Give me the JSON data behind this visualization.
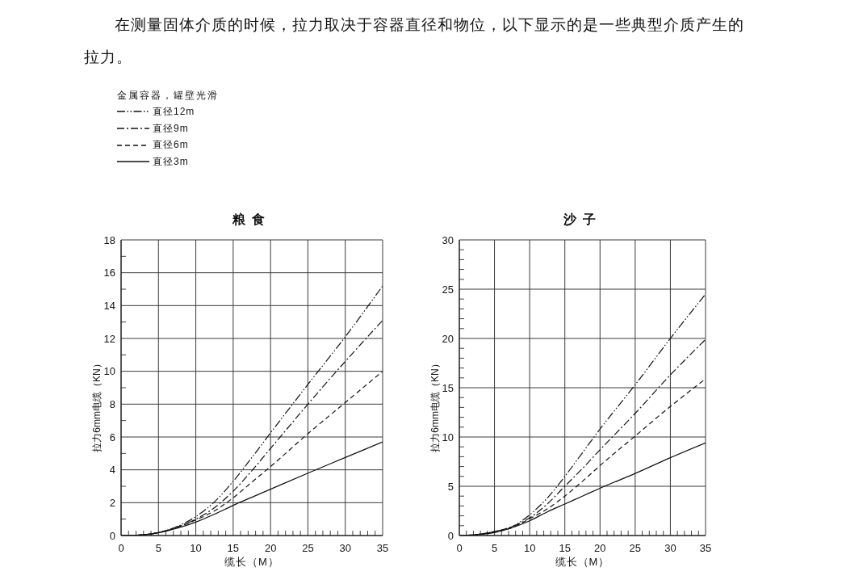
{
  "chart_data": [
    {
      "type": "line",
      "title": "粮食",
      "annotations": [
        "在测量固体介质的时候，拉力取决于容器直径和物位，以下显示的是一些典型介质产生的拉力。"
      ],
      "xlabel": "缆长（M）",
      "ylabel": "拉力6mm电缆（KN）",
      "legend_title": "金属容器，罐壁光滑",
      "legend": "top left",
      "grid": true,
      "xlim": [
        0,
        35
      ],
      "ylim": [
        0,
        18
      ],
      "xticks": [
        0,
        {
          "value": 1,
          "label": null
        },
        {
          "value": 2,
          "label": null
        },
        {
          "value": 3,
          "label": null
        },
        {
          "value": 4,
          "label": null
        },
        5,
        {
          "value": 6,
          "label": null
        },
        {
          "value": 7,
          "label": null
        },
        {
          "value": 8,
          "label": null
        },
        {
          "value": 9,
          "label": null
        },
        10,
        {
          "value": 11,
          "label": null
        },
        {
          "value": 12,
          "label": null
        },
        {
          "value": 13,
          "label": null
        },
        {
          "value": 14,
          "label": null
        },
        15,
        {
          "value": 16,
          "label": null
        },
        {
          "value": 17,
          "label": null
        },
        {
          "value": 18,
          "label": null
        },
        {
          "value": 19,
          "label": null
        },
        20,
        {
          "value": 21,
          "label": null
        },
        {
          "value": 22,
          "label": null
        },
        {
          "value": 23,
          "label": null
        },
        {
          "value": 24,
          "label": null
        },
        25,
        {
          "value": 26,
          "label": null
        },
        {
          "value": 27,
          "label": null
        },
        {
          "value": 28,
          "label": null
        },
        {
          "value": 29,
          "label": null
        },
        30,
        {
          "value": 31,
          "label": null
        },
        {
          "value": 32,
          "label": null
        },
        {
          "value": 33,
          "label": null
        },
        {
          "value": 34,
          "label": null
        },
        35
      ],
      "yticks": [
        0,
        {
          "value": 1,
          "label": null
        },
        2,
        {
          "value": 3,
          "label": null
        },
        4,
        {
          "value": 5,
          "label": null
        },
        6,
        {
          "value": 7,
          "label": null
        },
        8,
        {
          "value": 9,
          "label": null
        },
        10,
        {
          "value": 11,
          "label": null
        },
        12,
        {
          "value": 13,
          "label": null
        },
        14,
        {
          "value": 15,
          "label": null
        },
        16,
        {
          "value": 17,
          "label": null
        },
        18
      ],
      "x": [
        0,
        2.5,
        5,
        7.5,
        10,
        12.5,
        15,
        17.5,
        20,
        25,
        30,
        35
      ],
      "series": [
        {
          "name": "直径12m",
          "color": "#111111",
          "line_style": "dashdotdot",
          "values": [
            0,
            0.03,
            0.18,
            0.55,
            1.15,
            2.05,
            3.3,
            4.75,
            6.25,
            9.2,
            12.1,
            15.2
          ]
        },
        {
          "name": "直径9m",
          "color": "#111111",
          "line_style": "dashdot",
          "values": [
            0,
            0.03,
            0.18,
            0.52,
            1.0,
            1.7,
            2.7,
            3.95,
            5.3,
            8.0,
            10.6,
            13.1
          ]
        },
        {
          "name": "直径6m",
          "color": "#111111",
          "line_style": "dashed",
          "values": [
            0,
            0.03,
            0.18,
            0.5,
            0.95,
            1.5,
            2.3,
            3.25,
            4.2,
            6.2,
            8.1,
            10.0
          ]
        },
        {
          "name": "直径3m",
          "color": "#111111",
          "line_style": "solid",
          "values": [
            0,
            0.03,
            0.17,
            0.45,
            0.82,
            1.3,
            1.84,
            2.33,
            2.82,
            3.8,
            4.75,
            5.7
          ]
        }
      ]
    },
    {
      "type": "line",
      "title": "沙子",
      "xlabel": "缆长（M）",
      "ylabel": "拉力6mm电缆（KN）",
      "grid": true,
      "xlim": [
        0,
        35
      ],
      "ylim": [
        0,
        30
      ],
      "xticks": [
        0,
        {
          "value": 1,
          "label": null
        },
        {
          "value": 2,
          "label": null
        },
        {
          "value": 3,
          "label": null
        },
        {
          "value": 4,
          "label": null
        },
        5,
        {
          "value": 6,
          "label": null
        },
        {
          "value": 7,
          "label": null
        },
        {
          "value": 8,
          "label": null
        },
        {
          "value": 9,
          "label": null
        },
        10,
        {
          "value": 11,
          "label": null
        },
        {
          "value": 12,
          "label": null
        },
        {
          "value": 13,
          "label": null
        },
        {
          "value": 14,
          "label": null
        },
        15,
        {
          "value": 16,
          "label": null
        },
        {
          "value": 17,
          "label": null
        },
        {
          "value": 18,
          "label": null
        },
        {
          "value": 19,
          "label": null
        },
        20,
        {
          "value": 21,
          "label": null
        },
        {
          "value": 22,
          "label": null
        },
        {
          "value": 23,
          "label": null
        },
        {
          "value": 24,
          "label": null
        },
        25,
        {
          "value": 26,
          "label": null
        },
        {
          "value": 27,
          "label": null
        },
        {
          "value": 28,
          "label": null
        },
        {
          "value": 29,
          "label": null
        },
        30,
        {
          "value": 31,
          "label": null
        },
        {
          "value": 32,
          "label": null
        },
        {
          "value": 33,
          "label": null
        },
        {
          "value": 34,
          "label": null
        },
        35
      ],
      "yticks": [
        0,
        {
          "value": 1,
          "label": null
        },
        {
          "value": 2,
          "label": null
        },
        {
          "value": 3,
          "label": null
        },
        {
          "value": 4,
          "label": null
        },
        5,
        {
          "value": 6,
          "label": null
        },
        {
          "value": 7,
          "label": null
        },
        {
          "value": 8,
          "label": null
        },
        {
          "value": 9,
          "label": null
        },
        10,
        {
          "value": 11,
          "label": null
        },
        {
          "value": 12,
          "label": null
        },
        {
          "value": 13,
          "label": null
        },
        {
          "value": 14,
          "label": null
        },
        15,
        {
          "value": 16,
          "label": null
        },
        {
          "value": 17,
          "label": null
        },
        {
          "value": 18,
          "label": null
        },
        {
          "value": 19,
          "label": null
        },
        20,
        {
          "value": 21,
          "label": null
        },
        {
          "value": 22,
          "label": null
        },
        {
          "value": 23,
          "label": null
        },
        {
          "value": 24,
          "label": null
        },
        25,
        {
          "value": 26,
          "label": null
        },
        {
          "value": 27,
          "label": null
        },
        {
          "value": 28,
          "label": null
        },
        {
          "value": 29,
          "label": null
        },
        30
      ],
      "x": [
        0,
        2.5,
        5,
        7.5,
        10,
        12.5,
        15,
        17.5,
        20,
        25,
        30,
        35
      ],
      "series": [
        {
          "color": "#111111",
          "line_style": "dashdotdot",
          "values": [
            0,
            0.1,
            0.4,
            0.9,
            2.1,
            3.8,
            6.0,
            8.4,
            10.8,
            15.3,
            20.0,
            24.5
          ]
        },
        {
          "color": "#111111",
          "line_style": "dashdot",
          "values": [
            0,
            0.1,
            0.4,
            0.9,
            1.8,
            3.2,
            5.0,
            6.8,
            8.7,
            12.4,
            16.3,
            19.9
          ]
        },
        {
          "color": "#111111",
          "line_style": "dashed",
          "values": [
            0,
            0.1,
            0.4,
            0.8,
            1.7,
            2.7,
            4.0,
            5.5,
            7.1,
            10.1,
            13.1,
            15.9
          ]
        },
        {
          "color": "#111111",
          "line_style": "solid",
          "values": [
            0,
            0.1,
            0.3,
            0.8,
            1.5,
            2.4,
            3.2,
            4.0,
            4.8,
            6.3,
            7.9,
            9.4
          ]
        }
      ]
    }
  ]
}
